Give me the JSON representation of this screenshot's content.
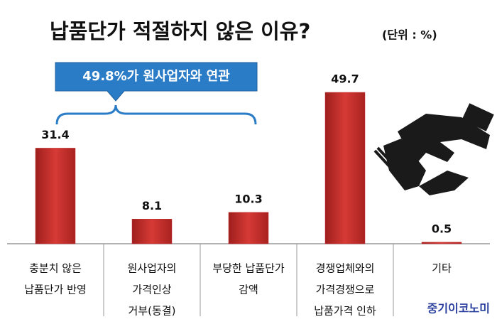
{
  "chart_data": {
    "type": "bar",
    "title": "납품단가 적절하지 않은 이유?",
    "subtitle": "(단위 : %)",
    "categories": [
      [
        "충분치 않은",
        "납품단가 반영"
      ],
      [
        "원사업자의",
        "가격인상",
        "거부(동결)"
      ],
      [
        "부당한 납품단가",
        "감액"
      ],
      [
        "경쟁업체와의",
        "가격경쟁으로",
        "납품가격 인하"
      ],
      [
        "기타"
      ]
    ],
    "values": [
      31.4,
      8.1,
      10.3,
      49.7,
      0.5
    ],
    "color": "#c0302e",
    "annotation": "49.8%가 원사업자와 연관"
  },
  "watermark": "중기이코노미"
}
